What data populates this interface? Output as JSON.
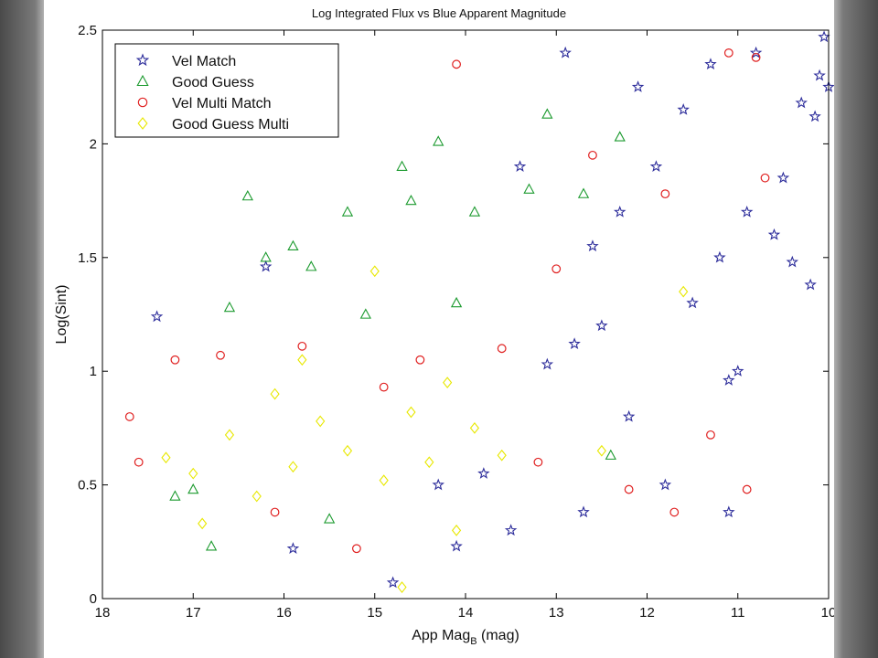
{
  "chart_data": {
    "type": "scatter",
    "title": "Log Integrated Flux vs Blue Apparent Magnitude",
    "xlabel": {
      "main": "App Mag",
      "sub": "B",
      "unit": "(mag)"
    },
    "ylabel": "Log(Sint)",
    "xlim": [
      18,
      10
    ],
    "ylim": [
      0,
      2.5
    ],
    "x_ticks": [
      18,
      17,
      16,
      15,
      14,
      13,
      12,
      11,
      10
    ],
    "y_ticks": [
      0,
      0.5,
      1,
      1.5,
      2,
      2.5
    ],
    "grid": false,
    "legend_position": "top-left",
    "series": [
      {
        "name": "Vel Match",
        "marker": "star",
        "color": "#2d2d9b",
        "points": [
          [
            17.4,
            1.24
          ],
          [
            16.2,
            1.46
          ],
          [
            15.9,
            0.22
          ],
          [
            14.8,
            0.07
          ],
          [
            14.1,
            0.23
          ],
          [
            13.5,
            0.3
          ],
          [
            12.9,
            2.4
          ],
          [
            12.6,
            1.55
          ],
          [
            12.3,
            1.7
          ],
          [
            12.1,
            2.25
          ],
          [
            11.9,
            1.9
          ],
          [
            11.6,
            2.15
          ],
          [
            11.3,
            2.35
          ],
          [
            11.1,
            0.96
          ],
          [
            11.0,
            1.0
          ],
          [
            10.8,
            2.4
          ],
          [
            10.6,
            1.6
          ],
          [
            10.5,
            1.85
          ],
          [
            10.4,
            1.48
          ],
          [
            10.3,
            2.18
          ],
          [
            10.2,
            1.38
          ],
          [
            10.15,
            2.12
          ],
          [
            10.1,
            2.3
          ],
          [
            10.05,
            2.47
          ],
          [
            10.0,
            2.25
          ],
          [
            12.7,
            0.38
          ],
          [
            11.8,
            0.5
          ],
          [
            13.1,
            1.03
          ],
          [
            12.5,
            1.2
          ],
          [
            12.2,
            0.8
          ],
          [
            11.5,
            1.3
          ],
          [
            11.2,
            1.5
          ],
          [
            10.9,
            1.7
          ],
          [
            13.4,
            1.9
          ],
          [
            12.8,
            1.12
          ],
          [
            13.8,
            0.55
          ],
          [
            14.3,
            0.5
          ],
          [
            11.1,
            0.38
          ]
        ]
      },
      {
        "name": "Good Guess",
        "marker": "triangle",
        "color": "#1b9a2e",
        "points": [
          [
            17.2,
            0.45
          ],
          [
            17.0,
            0.48
          ],
          [
            16.8,
            0.23
          ],
          [
            16.6,
            1.28
          ],
          [
            16.4,
            1.77
          ],
          [
            16.2,
            1.5
          ],
          [
            15.9,
            1.55
          ],
          [
            15.7,
            1.46
          ],
          [
            15.3,
            1.7
          ],
          [
            15.1,
            1.25
          ],
          [
            14.7,
            1.9
          ],
          [
            14.6,
            1.75
          ],
          [
            14.3,
            2.01
          ],
          [
            13.9,
            1.7
          ],
          [
            13.3,
            1.8
          ],
          [
            13.1,
            2.13
          ],
          [
            12.7,
            1.78
          ],
          [
            12.3,
            2.03
          ],
          [
            12.4,
            0.63
          ],
          [
            14.1,
            1.3
          ],
          [
            15.5,
            0.35
          ]
        ]
      },
      {
        "name": "Vel Multi Match",
        "marker": "circle",
        "color": "#e02020",
        "points": [
          [
            17.7,
            0.8
          ],
          [
            17.6,
            0.6
          ],
          [
            17.2,
            1.05
          ],
          [
            16.7,
            1.07
          ],
          [
            16.1,
            0.38
          ],
          [
            15.8,
            1.11
          ],
          [
            15.2,
            0.22
          ],
          [
            14.1,
            2.35
          ],
          [
            12.2,
            0.48
          ],
          [
            11.7,
            0.38
          ],
          [
            11.3,
            0.72
          ],
          [
            11.1,
            2.4
          ],
          [
            10.8,
            2.38
          ],
          [
            10.7,
            1.85
          ],
          [
            10.9,
            0.48
          ],
          [
            12.6,
            1.95
          ],
          [
            13.0,
            1.45
          ],
          [
            13.6,
            1.1
          ],
          [
            14.5,
            1.05
          ],
          [
            14.9,
            0.93
          ],
          [
            13.2,
            0.6
          ],
          [
            11.8,
            1.78
          ]
        ]
      },
      {
        "name": "Good Guess Multi",
        "marker": "diamond",
        "color": "#e8e800",
        "points": [
          [
            17.3,
            0.62
          ],
          [
            17.0,
            0.55
          ],
          [
            16.9,
            0.33
          ],
          [
            16.6,
            0.72
          ],
          [
            16.3,
            0.45
          ],
          [
            15.9,
            0.58
          ],
          [
            15.6,
            0.78
          ],
          [
            15.3,
            0.65
          ],
          [
            15.0,
            1.44
          ],
          [
            14.9,
            0.52
          ],
          [
            14.7,
            0.05
          ],
          [
            14.6,
            0.82
          ],
          [
            14.4,
            0.6
          ],
          [
            14.1,
            0.3
          ],
          [
            13.9,
            0.75
          ],
          [
            13.6,
            0.63
          ],
          [
            15.8,
            1.05
          ],
          [
            16.1,
            0.9
          ],
          [
            14.2,
            0.95
          ],
          [
            12.5,
            0.65
          ],
          [
            11.6,
            1.35
          ]
        ]
      }
    ]
  }
}
